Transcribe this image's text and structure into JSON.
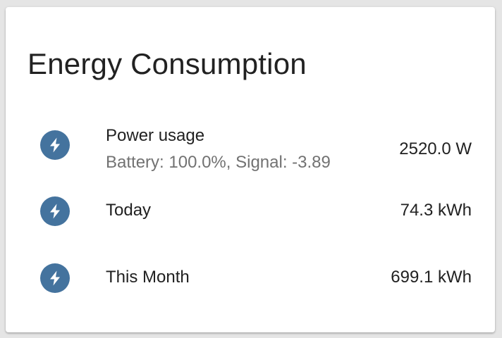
{
  "card": {
    "title": "Energy Consumption",
    "accent_color": "#44739e",
    "rows": [
      {
        "name": "Power usage",
        "secondary": "Battery: 100.0%, Signal: -3.89",
        "value": "2520.0 W",
        "icon": "flash-icon"
      },
      {
        "name": "Today",
        "value": "74.3 kWh",
        "icon": "flash-icon"
      },
      {
        "name": "This Month",
        "value": "699.1 kWh",
        "icon": "flash-icon"
      }
    ]
  }
}
